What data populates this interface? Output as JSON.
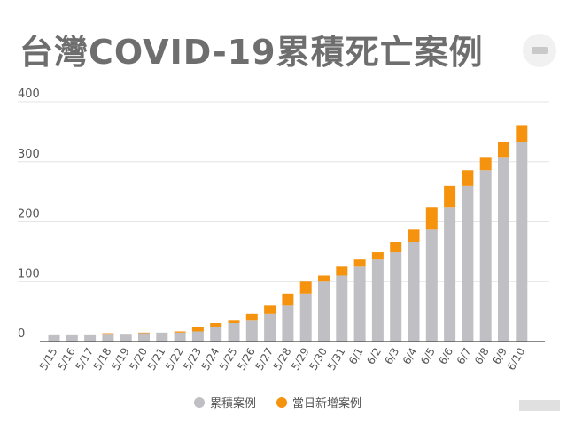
{
  "title": "台灣COVID-19累積死亡案例",
  "colors": {
    "cumulative": "#c0bfc3",
    "daily_new": "#f5930e",
    "grid": "#e4e4e4",
    "axis": "#444444",
    "text": "#555555"
  },
  "chart_data": {
    "type": "bar",
    "stacked": true,
    "categories": [
      "5/15",
      "5/16",
      "5/17",
      "5/18",
      "5/19",
      "5/20",
      "5/21",
      "5/22",
      "5/23",
      "5/24",
      "5/25",
      "5/26",
      "5/27",
      "5/28",
      "5/29",
      "5/30",
      "5/31",
      "6/1",
      "6/2",
      "6/3",
      "6/4",
      "6/5",
      "6/6",
      "6/7",
      "6/8",
      "6/9",
      "6/10"
    ],
    "series": [
      {
        "name": "累積案例",
        "values": [
          12,
          12,
          12,
          13,
          13,
          14,
          15,
          15,
          17,
          24,
          31,
          35,
          46,
          60,
          80,
          100,
          110,
          125,
          137,
          149,
          166,
          187,
          224,
          260,
          286,
          308,
          333
        ]
      },
      {
        "name": "當日新增案例",
        "values": [
          0,
          0,
          0,
          1,
          0,
          1,
          0,
          2,
          7,
          7,
          4,
          11,
          14,
          20,
          20,
          10,
          15,
          12,
          12,
          17,
          21,
          37,
          36,
          26,
          22,
          25,
          28
        ]
      }
    ],
    "yticks": [
      0,
      100,
      200,
      300,
      400
    ],
    "ylim": [
      0,
      400
    ],
    "grid": true,
    "legend": "bottom"
  }
}
